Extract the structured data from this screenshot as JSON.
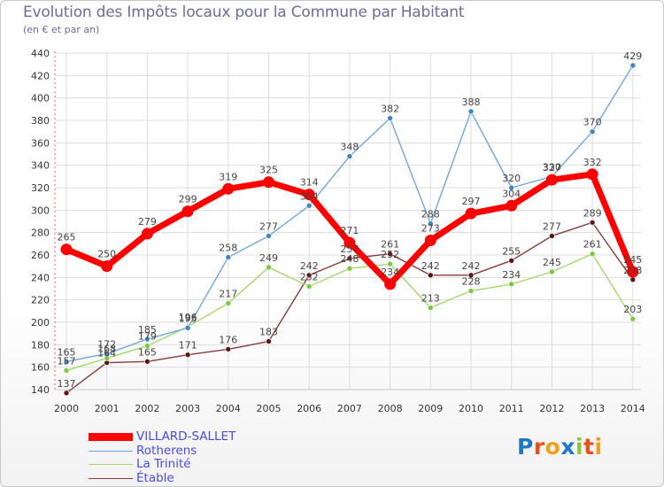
{
  "header": {
    "title": "Evolution des Impôts locaux pour la Commune par Habitant",
    "subtitle": "(en € et par an)"
  },
  "chart_data": {
    "type": "line",
    "title": "Evolution des Impôts locaux pour la Commune par Habitant",
    "subtitle": "(en € et par an)",
    "xlabel": "",
    "ylabel": "",
    "ylim": [
      140,
      440
    ],
    "yticks": [
      140,
      160,
      180,
      200,
      220,
      240,
      260,
      280,
      300,
      320,
      340,
      360,
      380,
      400,
      420,
      440
    ],
    "grid": true,
    "legend_position": "bottom-left",
    "categories": [
      "2000",
      "2001",
      "2002",
      "2003",
      "2004",
      "2005",
      "2006",
      "2007",
      "2008",
      "2009",
      "2010",
      "2011",
      "2012",
      "2013",
      "2014"
    ],
    "series": [
      {
        "name": "VILLARD-SALLET",
        "color": "#ff0000",
        "marker_color": "#ff0000",
        "values": [
          265,
          250,
          279,
          299,
          319,
          325,
          314,
          271,
          234,
          273,
          297,
          304,
          327,
          332,
          245
        ]
      },
      {
        "name": "Rotherens",
        "color": "#6fa8dc",
        "marker_color": "#3d85c6",
        "values": [
          165,
          172,
          185,
          195,
          258,
          277,
          304,
          348,
          382,
          288,
          388,
          320,
          330,
          370,
          429
        ]
      },
      {
        "name": "La Trinité",
        "color": "#a5d86a",
        "marker_color": "#7ac943",
        "values": [
          157,
          168,
          179,
          196,
          217,
          249,
          232,
          248,
          252,
          213,
          228,
          234,
          245,
          261,
          203
        ]
      },
      {
        "name": "Étable",
        "color": "#8b3a3a",
        "marker_color": "#5c1616",
        "values": [
          137,
          164,
          165,
          171,
          176,
          183,
          242,
          257,
          261,
          242,
          242,
          255,
          277,
          289,
          238
        ]
      }
    ]
  },
  "logo": {
    "text": "Proxiti",
    "colors": [
      "#1f77c8",
      "#e8521a",
      "#f2a01c",
      "#1f77c8",
      "#8dc63f",
      "#e8521a",
      "#f2a01c"
    ]
  }
}
